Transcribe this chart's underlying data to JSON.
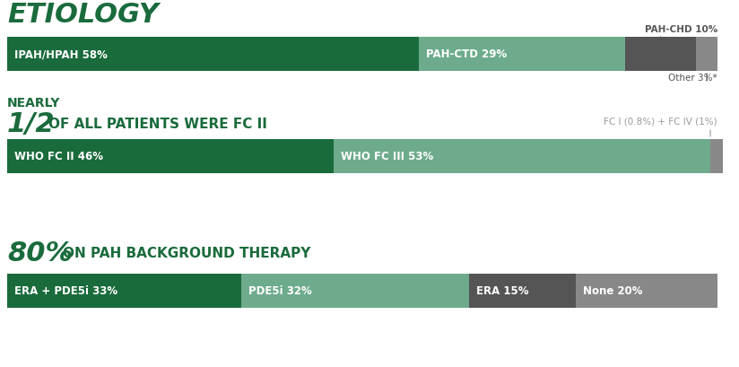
{
  "bg_color": "#ffffff",
  "dark_green": "#1a6b3c",
  "mid_green": "#6dab8c",
  "dark_gray": "#555555",
  "light_gray": "#9a9a9a",
  "bar1_segments": [
    {
      "label": "IPAH/HPAH 58%",
      "value": 58,
      "color": "#1a6b3c",
      "text_color": "#ffffff"
    },
    {
      "label": "PAH-CTD 29%",
      "value": 29,
      "color": "#6dab8c",
      "text_color": "#ffffff"
    },
    {
      "label": "",
      "value": 10,
      "color": "#555555",
      "text_color": "#ffffff"
    },
    {
      "label": "",
      "value": 3,
      "color": "#888888",
      "text_color": "#ffffff"
    }
  ],
  "bar1_annotation_top": "PAH-CHD 10%",
  "bar1_annotation_bottom": "Other 3%*",
  "bar2_segments": [
    {
      "label": "WHO FC II 46%",
      "value": 46,
      "color": "#1a6b3c",
      "text_color": "#ffffff"
    },
    {
      "label": "WHO FC III 53%",
      "value": 53,
      "color": "#6dab8c",
      "text_color": "#ffffff"
    },
    {
      "label": "",
      "value": 1.8,
      "color": "#888888",
      "text_color": "#ffffff"
    }
  ],
  "bar2_annotation": "FC I (0.8%) + FC IV (1%)",
  "bar3_segments": [
    {
      "label": "ERA + PDE5i 33%",
      "value": 33,
      "color": "#1a6b3c",
      "text_color": "#ffffff"
    },
    {
      "label": "PDE5i 32%",
      "value": 32,
      "color": "#6dab8c",
      "text_color": "#ffffff"
    },
    {
      "label": "ERA 15%",
      "value": 15,
      "color": "#555555",
      "text_color": "#ffffff"
    },
    {
      "label": "None 20%",
      "value": 20,
      "color": "#888888",
      "text_color": "#ffffff"
    }
  ],
  "title1": "ETIOLOGY",
  "title2_nearly": "NEARLY",
  "title2_half": "1/2",
  "title2_rest": "OF ALL PATIENTS WERE FC II",
  "title3_pct": "80%",
  "title3_rest": "ON PAH BACKGROUND THERAPY"
}
